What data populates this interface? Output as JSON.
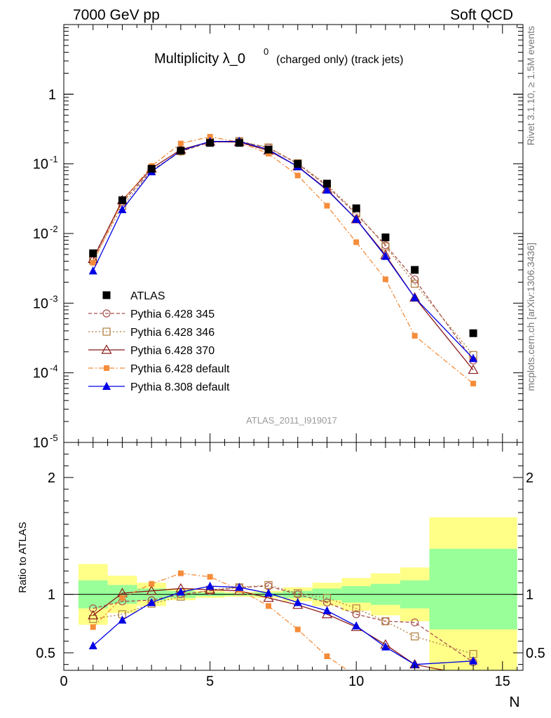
{
  "header": {
    "left": "7000 GeV pp",
    "right": "Soft QCD",
    "title_main": "Multiplicity λ_0",
    "title_sup": "0",
    "title_sub": "(charged only) (track jets)",
    "watermark": "ATLAS_2011_I919017",
    "side_top": "Rivet 3.1.10, ≥ 1.5M events",
    "side_bottom": "mcplots.cern.ch [arXiv:1306.3436]"
  },
  "chart_data": [
    {
      "type": "scatter",
      "panel": "main",
      "yscale": "log",
      "xlim": [
        0,
        15.7
      ],
      "ylim": [
        1e-05,
        10
      ],
      "x_ticks": [
        "0",
        "5",
        "10",
        "15"
      ],
      "y_tick_labels": [
        {
          "base": "10",
          "exp": "-5",
          "value": 1e-05
        },
        {
          "base": "10",
          "exp": "-4",
          "value": 0.0001
        },
        {
          "base": "10",
          "exp": "-3",
          "value": 0.001
        },
        {
          "base": "10",
          "exp": "-2",
          "value": 0.01
        },
        {
          "base": "10",
          "exp": "-1",
          "value": 0.1
        },
        {
          "base": "1",
          "exp": "",
          "value": 1
        }
      ],
      "legend_position": "lower-left",
      "series": [
        {
          "name": "ATLAS",
          "color": "#000000",
          "marker": "square",
          "line": "none",
          "x": [
            1,
            2,
            3,
            4,
            5,
            6,
            7,
            8,
            9,
            10,
            11,
            12,
            14
          ],
          "y": [
            0.0052,
            0.03,
            0.085,
            0.155,
            0.2,
            0.2,
            0.16,
            0.1,
            0.052,
            0.023,
            0.0088,
            0.003,
            0.00037
          ]
        },
        {
          "name": "Pythia 6.428 345",
          "color": "#a64d4d",
          "marker": "circle-open",
          "line": "dashed",
          "x": [
            1,
            2,
            3,
            4,
            5,
            6,
            7,
            8,
            9,
            10,
            11,
            12,
            14
          ],
          "y": [
            0.0045,
            0.028,
            0.08,
            0.15,
            0.205,
            0.21,
            0.17,
            0.1,
            0.048,
            0.019,
            0.0068,
            0.0022,
            0.00015
          ]
        },
        {
          "name": "Pythia 6.428 346",
          "color": "#b07c3c",
          "marker": "square-open",
          "line": "dotted",
          "x": [
            1,
            2,
            3,
            4,
            5,
            6,
            7,
            8,
            9,
            10,
            11,
            12,
            14
          ],
          "y": [
            0.0041,
            0.025,
            0.078,
            0.152,
            0.208,
            0.212,
            0.172,
            0.102,
            0.05,
            0.02,
            0.0065,
            0.0019,
            0.00018
          ]
        },
        {
          "name": "Pythia 6.428 370",
          "color": "#8b1a1a",
          "marker": "triangle-open",
          "line": "solid",
          "x": [
            1,
            2,
            3,
            4,
            5,
            6,
            7,
            8,
            9,
            10,
            11,
            12,
            14
          ],
          "y": [
            0.0043,
            0.03,
            0.086,
            0.16,
            0.208,
            0.205,
            0.155,
            0.092,
            0.043,
            0.016,
            0.0049,
            0.0012,
            0.00011
          ]
        },
        {
          "name": "Pythia 6.428 default",
          "color": "#f58c3a",
          "marker": "square-small",
          "line": "dashdot",
          "x": [
            1,
            2,
            3,
            4,
            5,
            6,
            7,
            8,
            9,
            10,
            11,
            12,
            14
          ],
          "y": [
            0.0038,
            0.029,
            0.093,
            0.196,
            0.245,
            0.205,
            0.14,
            0.068,
            0.025,
            0.0075,
            0.0022,
            0.00034,
            7e-05
          ]
        },
        {
          "name": "Pythia 8.308 default",
          "color": "#0000e6",
          "marker": "triangle",
          "line": "solid",
          "x": [
            1,
            2,
            3,
            4,
            5,
            6,
            7,
            8,
            9,
            10,
            11,
            12,
            14
          ],
          "y": [
            0.0029,
            0.022,
            0.077,
            0.155,
            0.21,
            0.21,
            0.16,
            0.091,
            0.042,
            0.016,
            0.0047,
            0.0012,
            0.00016
          ]
        }
      ]
    },
    {
      "type": "line",
      "panel": "ratio",
      "ylabel": "Ratio to ATLAS",
      "xlabel": "N",
      "xlim": [
        0,
        15.7
      ],
      "ylim": [
        0.35,
        2.3
      ],
      "y_ticks": [
        "0.5",
        "1",
        "2"
      ],
      "bands": {
        "x_edges": [
          0.5,
          1.5,
          2.5,
          3.5,
          4.5,
          5.5,
          6.5,
          7.5,
          8.5,
          9.5,
          10.5,
          11.5,
          12.5,
          15.5
        ],
        "yellow_low": [
          0.74,
          0.84,
          0.9,
          0.95,
          0.97,
          0.98,
          0.97,
          0.94,
          0.9,
          0.86,
          0.82,
          0.77,
          0.35
        ],
        "yellow_high": [
          1.26,
          1.16,
          1.1,
          1.05,
          1.03,
          1.02,
          1.03,
          1.06,
          1.1,
          1.14,
          1.18,
          1.23,
          1.66
        ],
        "green_low": [
          0.88,
          0.92,
          0.95,
          0.97,
          0.985,
          0.99,
          0.985,
          0.97,
          0.95,
          0.93,
          0.91,
          0.88,
          0.7
        ],
        "green_high": [
          1.12,
          1.08,
          1.05,
          1.03,
          1.015,
          1.01,
          1.015,
          1.03,
          1.05,
          1.07,
          1.09,
          1.12,
          1.39
        ]
      },
      "series": [
        {
          "name": "Pythia 6.428 345",
          "color": "#a64d4d",
          "marker": "circle-open",
          "line": "dashed",
          "x": [
            1,
            2,
            3,
            4,
            5,
            6,
            7,
            8,
            9,
            10,
            11,
            12,
            14
          ],
          "y": [
            0.88,
            0.94,
            0.95,
            1.0,
            1.03,
            1.06,
            1.07,
            1.0,
            0.93,
            0.83,
            0.77,
            0.76,
            0.42
          ]
        },
        {
          "name": "Pythia 6.428 346",
          "color": "#b07c3c",
          "marker": "square-open",
          "line": "dotted",
          "x": [
            1,
            2,
            3,
            4,
            5,
            6,
            7,
            8,
            9,
            10,
            11,
            12,
            14
          ],
          "y": [
            0.79,
            0.83,
            0.92,
            0.98,
            1.04,
            1.06,
            1.08,
            1.01,
            0.97,
            0.88,
            0.77,
            0.64,
            0.49
          ]
        },
        {
          "name": "Pythia 6.428 370",
          "color": "#8b1a1a",
          "marker": "triangle-open",
          "line": "solid",
          "x": [
            1,
            2,
            3,
            4,
            5,
            6,
            7,
            8,
            9,
            10,
            11,
            12,
            14
          ],
          "y": [
            0.82,
            1.01,
            1.03,
            1.05,
            1.04,
            1.03,
            0.97,
            0.91,
            0.83,
            0.72,
            0.57,
            0.4,
            0.3
          ]
        },
        {
          "name": "Pythia 6.428 default",
          "color": "#f58c3a",
          "marker": "square-small",
          "line": "dashdot",
          "x": [
            1,
            2,
            3,
            4,
            5,
            6,
            7,
            8,
            9,
            10
          ],
          "y": [
            0.72,
            0.97,
            1.09,
            1.18,
            1.15,
            1.04,
            0.9,
            0.7,
            0.47,
            0.3
          ]
        },
        {
          "name": "Pythia 8.308 default",
          "color": "#0000e6",
          "marker": "triangle",
          "line": "solid",
          "x": [
            1,
            2,
            3,
            4,
            5,
            6,
            7,
            8,
            9,
            10,
            11,
            12,
            14
          ],
          "y": [
            0.56,
            0.78,
            0.93,
            1.02,
            1.07,
            1.06,
            1.01,
            0.93,
            0.86,
            0.73,
            0.55,
            0.4,
            0.43
          ]
        }
      ]
    }
  ]
}
